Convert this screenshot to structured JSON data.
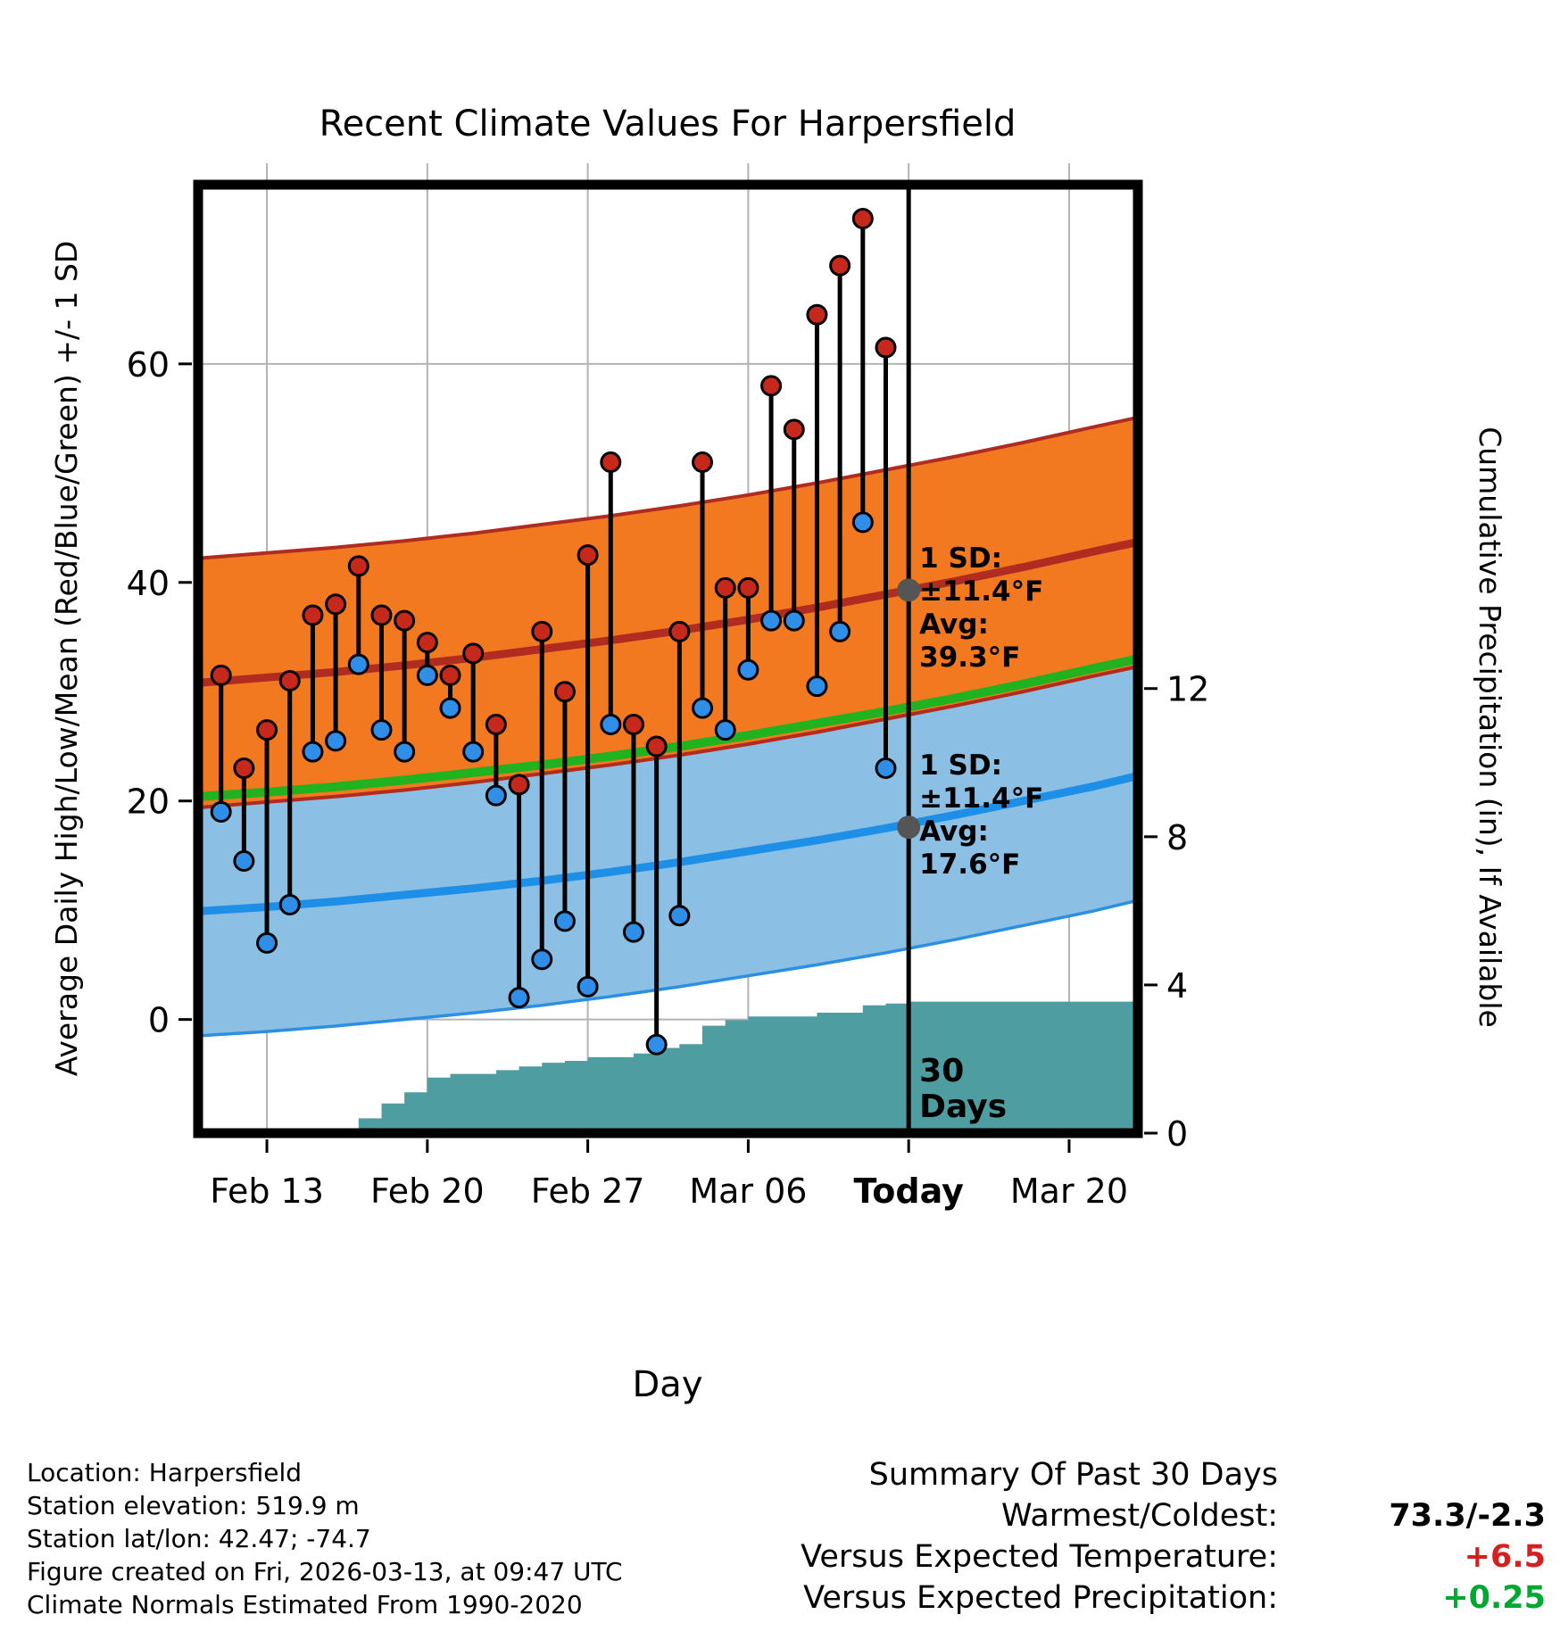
{
  "chart_data": {
    "type": "line",
    "subtype": "climate-normals-with-daily-highs-lows-and-cumulative-precip",
    "title": "Recent Climate Values For Harpersfield",
    "x_label": "Day",
    "y_left_label": "Average Daily High/Low/Mean (Red/Blue/Green) +/- 1 SD",
    "y_right_label": "Cumulative Precipitation (in), If Available",
    "x_domain": [
      -3,
      38
    ],
    "temp_ylim": [
      -10.4,
      76.4
    ],
    "precip_ylim": [
      0,
      25.6
    ],
    "x_ticks": [
      {
        "day": 0,
        "label": "Feb 13",
        "bold": false
      },
      {
        "day": 7,
        "label": "Feb 20",
        "bold": false
      },
      {
        "day": 14,
        "label": "Feb 27",
        "bold": false
      },
      {
        "day": 21,
        "label": "Mar 06",
        "bold": false
      },
      {
        "day": 28,
        "label": "Today",
        "bold": true
      },
      {
        "day": 35,
        "label": "Mar 20",
        "bold": false
      }
    ],
    "left_ticks": [
      0,
      20,
      40,
      60
    ],
    "right_ticks": [
      0,
      4,
      8,
      12
    ],
    "normals": {
      "sd": 11.4,
      "days": [
        -3,
        0,
        3,
        6,
        9,
        12,
        15,
        18,
        21,
        24,
        27,
        30,
        33,
        36,
        38
      ],
      "avg_high": [
        30.8,
        31.3,
        31.8,
        32.4,
        33.1,
        33.9,
        34.7,
        35.6,
        36.6,
        37.7,
        38.9,
        40.1,
        41.4,
        42.8,
        43.7
      ],
      "avg_low": [
        9.9,
        10.3,
        10.8,
        11.4,
        12.0,
        12.7,
        13.5,
        14.4,
        15.4,
        16.4,
        17.5,
        18.7,
        20.0,
        21.3,
        22.3
      ],
      "mean": [
        20.4,
        20.8,
        21.3,
        21.9,
        22.6,
        23.3,
        24.1,
        25.0,
        26.0,
        27.1,
        28.2,
        29.4,
        30.7,
        32.1,
        33.0
      ]
    },
    "daily": {
      "days": [
        -2,
        -1,
        0,
        1,
        2,
        3,
        4,
        5,
        6,
        7,
        8,
        9,
        10,
        11,
        12,
        13,
        14,
        15,
        16,
        17,
        18,
        19,
        20,
        21,
        22,
        23,
        24,
        25,
        26,
        27
      ],
      "high": [
        31.5,
        23,
        26.5,
        31,
        37,
        38,
        41.5,
        37,
        36.5,
        34.5,
        31.5,
        33.5,
        27,
        21.5,
        35.5,
        30,
        42.5,
        51,
        27,
        25,
        35.5,
        51,
        39.5,
        39.5,
        58,
        54,
        64.5,
        69,
        73.3,
        61.5
      ],
      "low": [
        19,
        14.5,
        7,
        10.5,
        24.5,
        25.5,
        32.5,
        26.5,
        24.5,
        31.5,
        28.5,
        24.5,
        20.5,
        2,
        5.5,
        9,
        3,
        27,
        8,
        -2.3,
        9.5,
        28.5,
        26.5,
        32,
        36.5,
        36.5,
        30.5,
        35.5,
        45.5,
        23
      ]
    },
    "precip_cumulative": {
      "days": [
        4,
        5,
        6,
        7,
        8,
        10,
        11,
        12,
        13,
        14,
        16,
        17,
        18,
        19,
        20,
        21,
        24,
        26,
        27,
        28
      ],
      "values": [
        0.4,
        0.8,
        1.1,
        1.5,
        1.6,
        1.7,
        1.8,
        1.9,
        1.95,
        2.05,
        2.15,
        2.3,
        2.4,
        2.9,
        3.05,
        3.15,
        3.25,
        3.45,
        3.5,
        3.55
      ]
    },
    "today": {
      "day": 28,
      "avg_high": 39.3,
      "avg_low": 17.6
    },
    "annotations": {
      "high": [
        "1 SD:",
        "±11.4°F",
        "Avg:",
        " 39.3°F"
      ],
      "low": [
        "1 SD:",
        "±11.4°F",
        "Avg:",
        " 17.6°F"
      ],
      "period": [
        "30",
        "Days"
      ]
    }
  },
  "colors": {
    "grid": "#b3b3b3",
    "border": "#000000",
    "high_band": "#f2791f",
    "high_band_edge": "#b02c20",
    "avg_high_line": "#b02c20",
    "low_band": "#8cbfe4",
    "low_band_edge": "#2d8fe0",
    "avg_low_line": "#1e8fe6",
    "mean_line": "#21b21f",
    "precip_fill": "#4e9da1",
    "stem": "#000000",
    "high_marker": "#c6291b",
    "low_marker": "#2f8fe8",
    "marker_edge": "#000000",
    "today_line": "#000000",
    "today_marker": "#555555",
    "annotation": "#808080"
  },
  "footer": {
    "info_lines": [
      "Location: Harpersfield",
      "Station elevation: 519.9 m",
      "Station lat/lon: 42.47; -74.7",
      "Figure created on Fri, 2026-03-13, at 09:47 UTC",
      "Climate Normals Estimated From 1990-2020"
    ]
  },
  "summary": {
    "title": "Summary Of Past 30 Days",
    "rows": [
      {
        "label": "Warmest/Coldest:",
        "value": "73.3/-2.3",
        "color": "#000000"
      },
      {
        "label": "Versus Expected Temperature:",
        "value": "+6.5",
        "color": "#d62020"
      },
      {
        "label": "Versus Expected Precipitation:",
        "value": "+0.25",
        "color": "#00a832"
      }
    ]
  }
}
